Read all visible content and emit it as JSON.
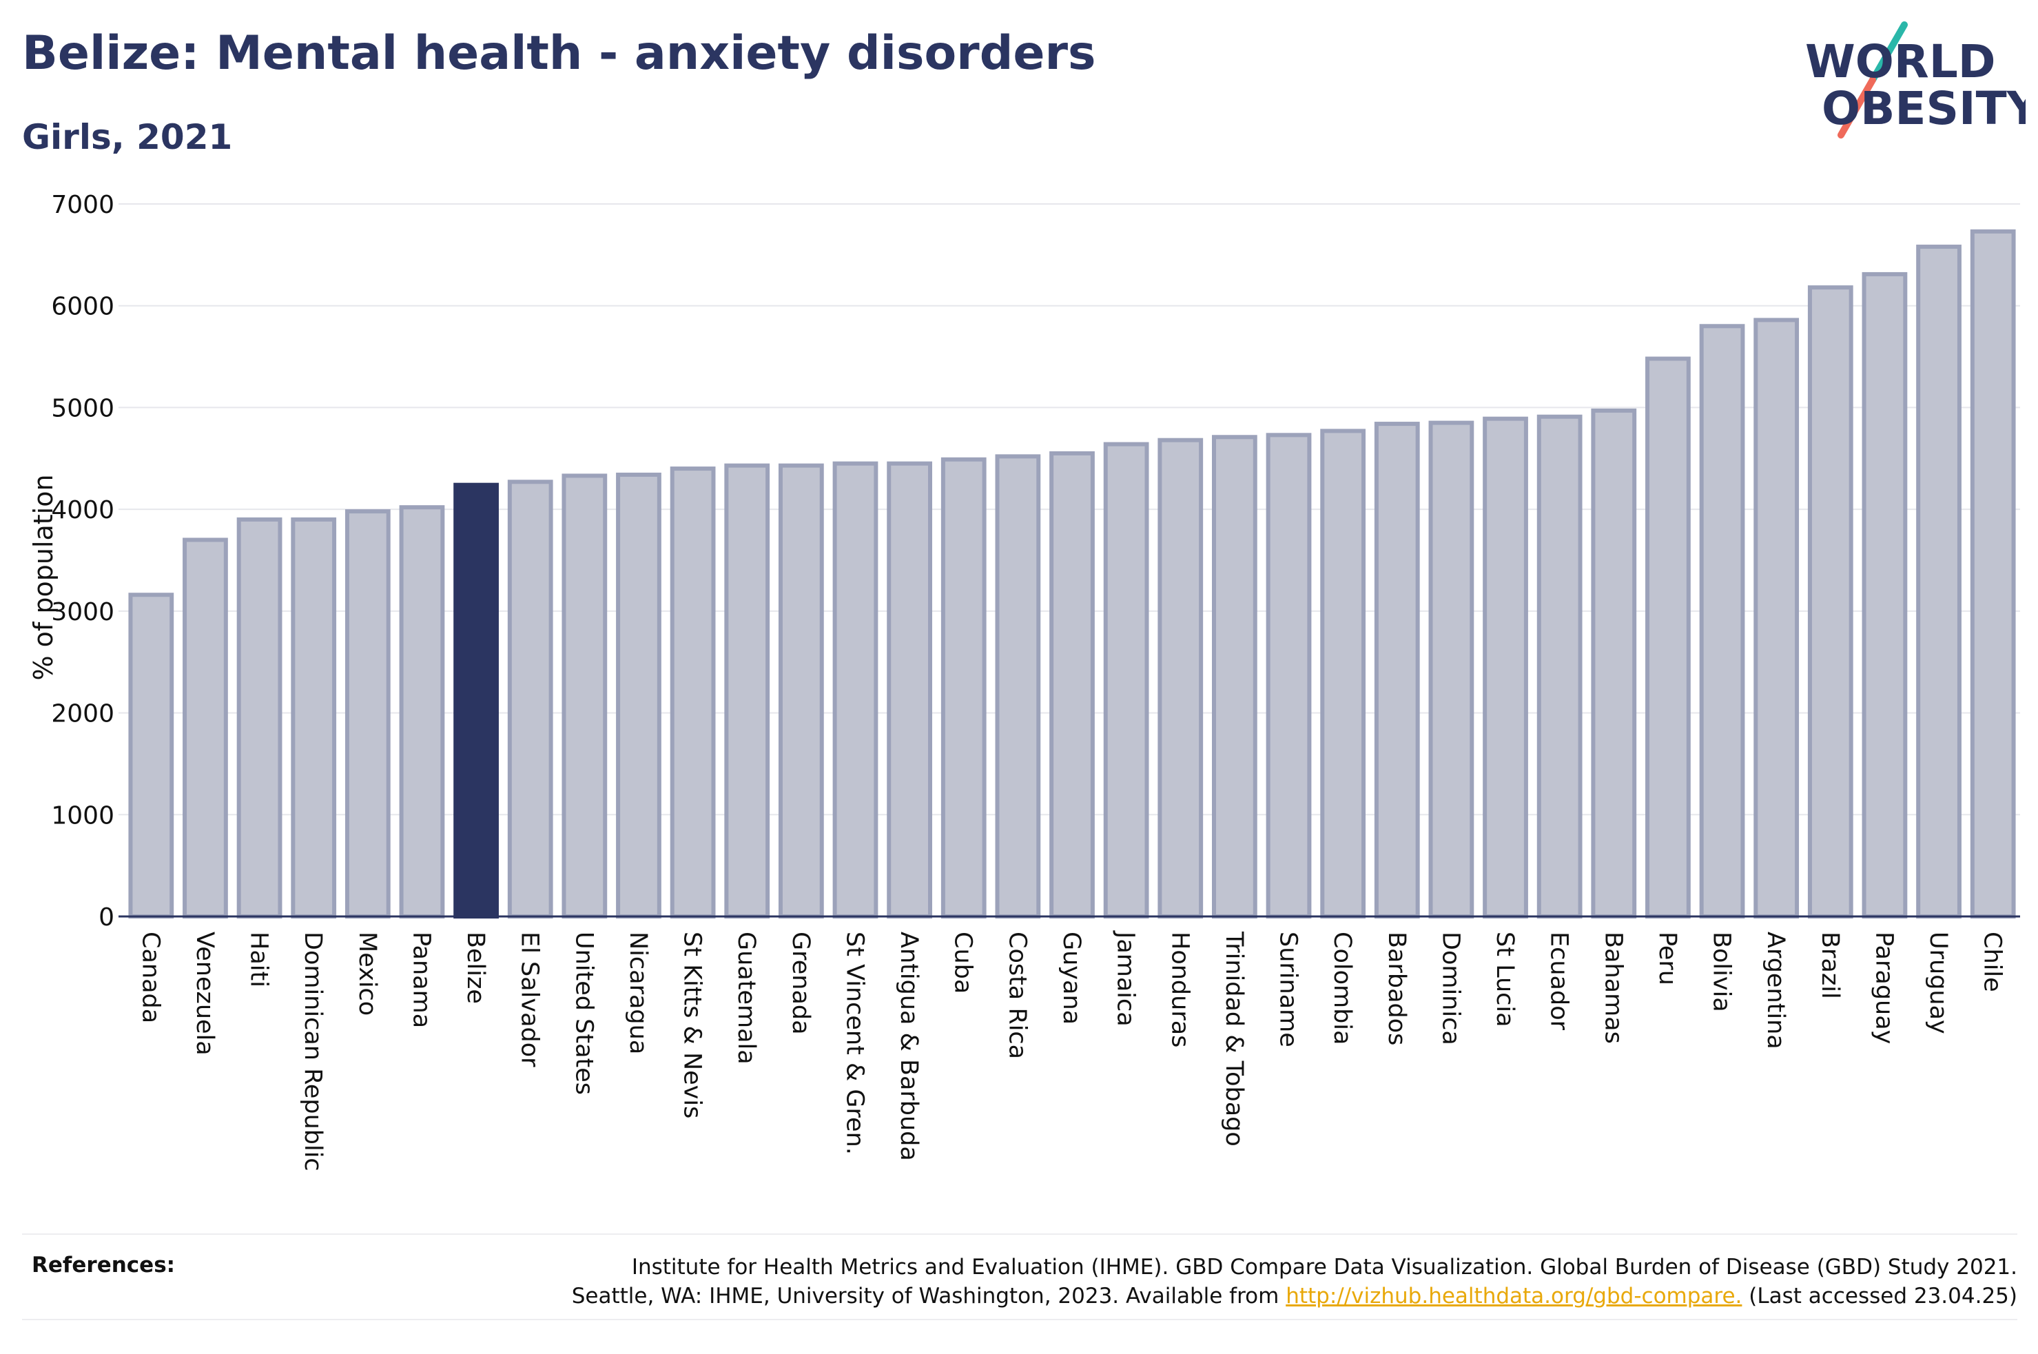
{
  "header": {
    "title": "Belize: Mental health - anxiety disorders",
    "subtitle": "Girls, 2021"
  },
  "logo": {
    "line1": "WORLD",
    "line2": "OBESITY",
    "slash_color_top": "#2ab7a9",
    "slash_color_bottom": "#ef6a5a"
  },
  "colors": {
    "highlight": "#2b3561",
    "bar_fill": "#c0c3d0",
    "bar_stroke": "#9ca2ba",
    "text": "#2b3561"
  },
  "chart_data": {
    "type": "bar",
    "title": "Belize: Mental health - anxiety disorders",
    "subtitle": "Girls, 2021",
    "ylabel": "% of population",
    "ylim": [
      0,
      7000
    ],
    "yticks": [
      0,
      1000,
      2000,
      3000,
      4000,
      5000,
      6000,
      7000
    ],
    "grid": true,
    "highlight": "Belize",
    "categories": [
      "Canada",
      "Venezuela",
      "Haiti",
      "Dominican Republic",
      "Mexico",
      "Panama",
      "Belize",
      "El Salvador",
      "United States",
      "Nicaragua",
      "St Kitts & Nevis",
      "Guatemala",
      "Grenada",
      "St Vincent & Gren.",
      "Antigua & Barbuda",
      "Cuba",
      "Costa Rica",
      "Guyana",
      "Jamaica",
      "Honduras",
      "Trinidad & Tobago",
      "Suriname",
      "Colombia",
      "Barbados",
      "Dominica",
      "St Lucia",
      "Ecuador",
      "Bahamas",
      "Peru",
      "Bolivia",
      "Argentina",
      "Brazil",
      "Paraguay",
      "Uruguay",
      "Chile"
    ],
    "values": [
      3160,
      3700,
      3900,
      3900,
      3980,
      4020,
      4240,
      4270,
      4330,
      4340,
      4400,
      4430,
      4430,
      4450,
      4450,
      4490,
      4520,
      4550,
      4640,
      4680,
      4710,
      4730,
      4770,
      4840,
      4850,
      4890,
      4910,
      4970,
      5480,
      5800,
      5860,
      6180,
      6310,
      6580,
      6730
    ]
  },
  "references": {
    "label": "References:",
    "line1": "Institute for Health Metrics and Evaluation (IHME). GBD Compare Data Visualization. Global Burden of Disease (GBD) Study 2021.",
    "line2_prefix": "Seattle, WA: IHME, University of Washington, 2023. Available from ",
    "link": "http://vizhub.healthdata.org/gbd-compare.",
    "line2_suffix": " (Last accessed 23.04.25)"
  }
}
